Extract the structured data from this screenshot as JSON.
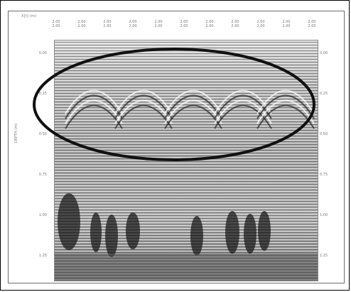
{
  "image": {
    "x_axis_label": "X[t] (m)",
    "y_axis_label": "DEPTH (m)",
    "x_ticks": [
      {
        "top": "2.00",
        "bottom": "2.00"
      },
      {
        "top": "2.00",
        "bottom": "2.00"
      },
      {
        "top": "2.00",
        "bottom": "2.00"
      },
      {
        "top": "2.00",
        "bottom": "2.00"
      },
      {
        "top": "2.00",
        "bottom": "2.00"
      },
      {
        "top": "2.00",
        "bottom": "2.00"
      },
      {
        "top": "2.00",
        "bottom": "2.00"
      },
      {
        "top": "2.00",
        "bottom": "2.00"
      },
      {
        "top": "2.00",
        "bottom": "2.00"
      },
      {
        "top": "2.00",
        "bottom": "2.00"
      },
      {
        "top": "2.00",
        "bottom": "2.00"
      }
    ],
    "y_ticks": [
      "0.00",
      "0.25",
      "0.50",
      "0.75",
      "1.00",
      "1.25"
    ],
    "highlight": "ellipse around hyperbolic reflections",
    "colors": {
      "frame": "#000000",
      "ellipse": "#111111",
      "background": "#ffffff"
    }
  }
}
